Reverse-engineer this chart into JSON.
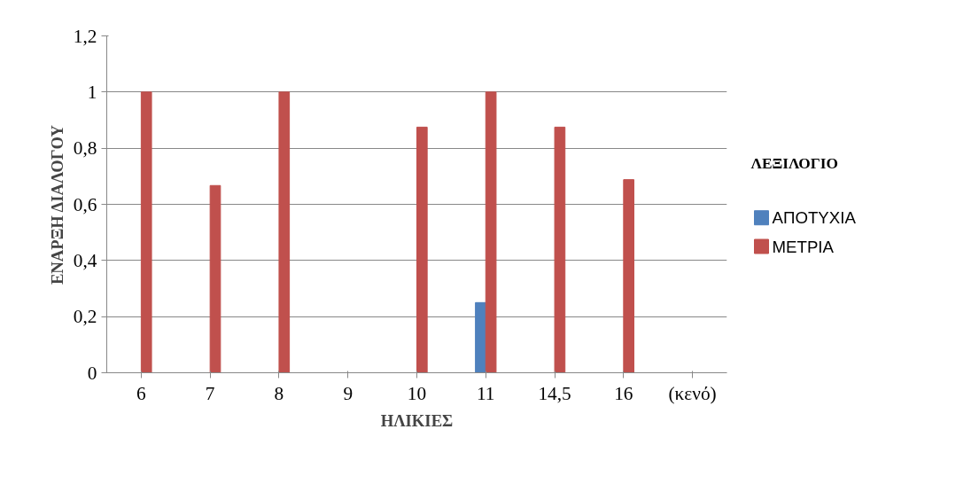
{
  "chart_data": {
    "type": "bar",
    "xlabel": "ΗΛΙΚΙΕΣ",
    "ylabel": "ΕΝΑΡΞΗ ΔΙΑΛΟΓΟΥ",
    "legend_title": "ΛΕΞΙΛΟΓΙΟ",
    "categories": [
      "6",
      "7",
      "8",
      "9",
      "10",
      "11",
      "14,5",
      "16",
      "(κενό)"
    ],
    "series": [
      {
        "name": "ΑΠΟΤΥΧΙΑ",
        "color": "#4f81bd",
        "values": [
          null,
          null,
          null,
          null,
          null,
          0.25,
          null,
          null,
          null
        ]
      },
      {
        "name": "ΜΕΤΡΙΑ",
        "color": "#c0504d",
        "values": [
          1,
          0.667,
          1,
          null,
          0.875,
          1,
          0.875,
          0.688,
          null
        ]
      }
    ],
    "ylim": [
      0,
      1.2
    ],
    "yticks": [
      0,
      {
        "value": 0.2,
        "label": "0,2"
      },
      {
        "value": 0.4,
        "label": "0,4"
      },
      {
        "value": 0.6,
        "label": "0,6"
      },
      {
        "value": 0.8,
        "label": "0,8"
      },
      1,
      {
        "value": 1.2,
        "label": "1,2"
      }
    ],
    "grid": "y",
    "legend": "right"
  }
}
